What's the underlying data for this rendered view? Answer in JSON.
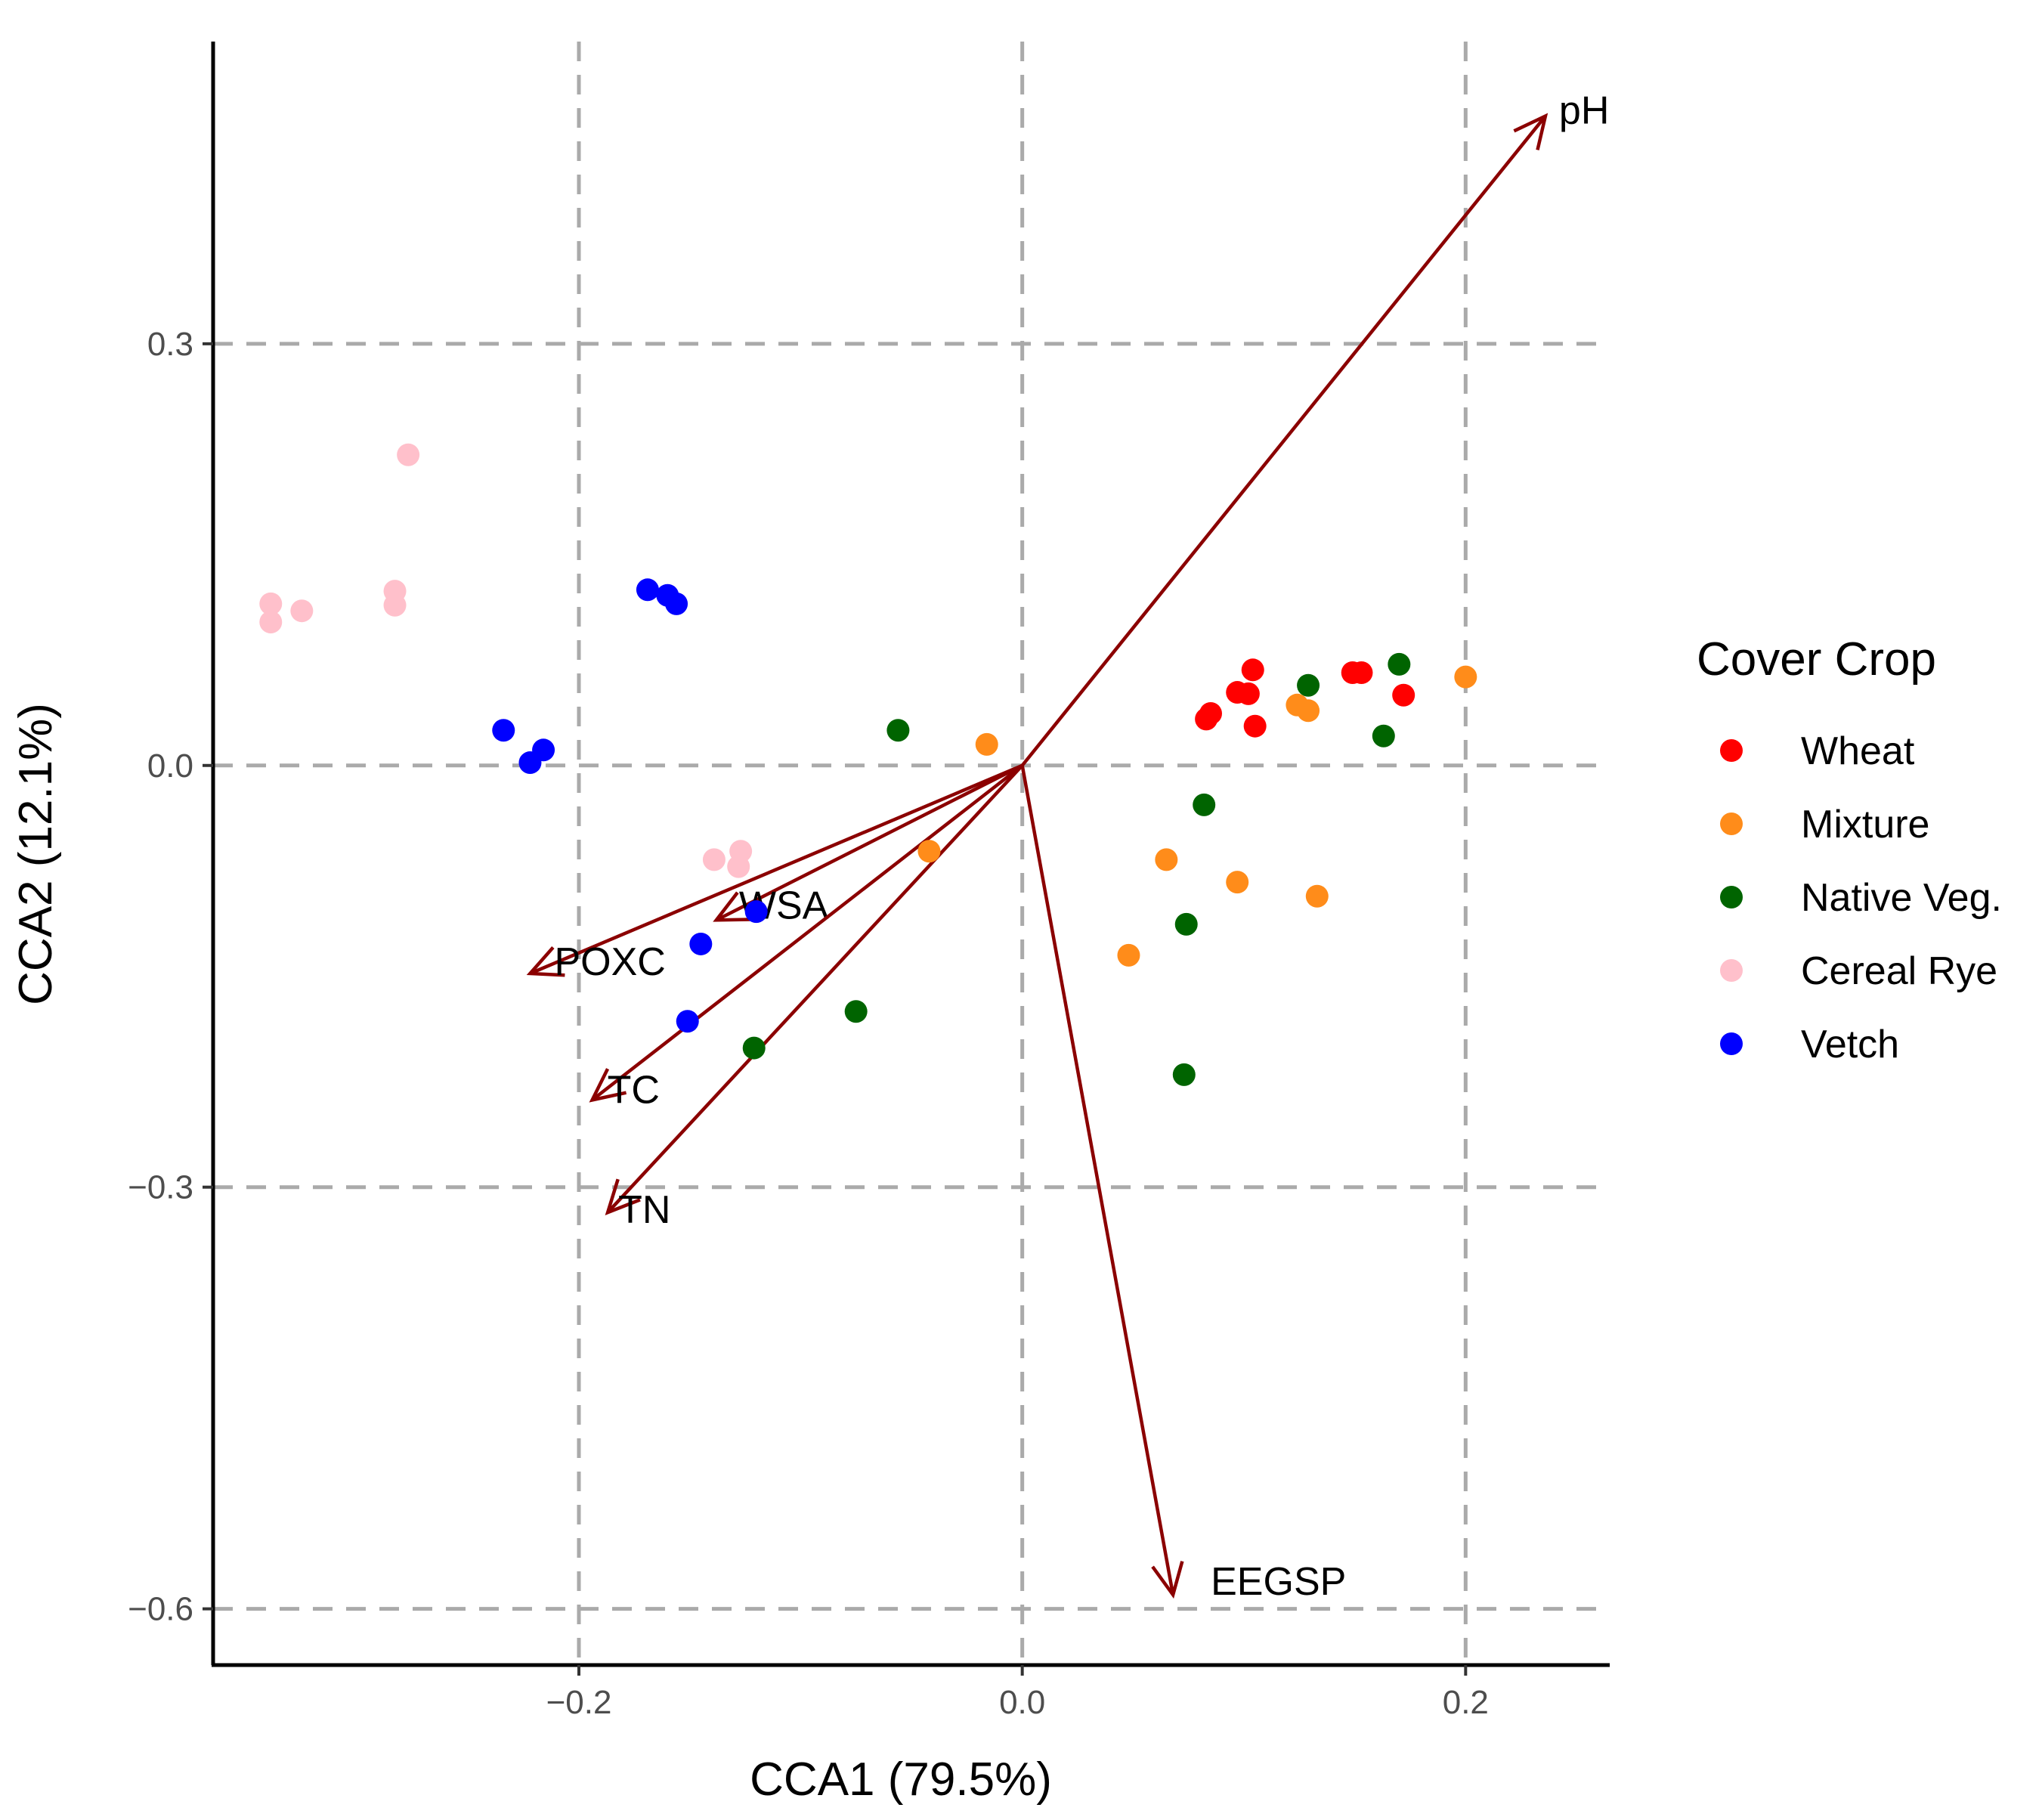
{
  "chart_data": {
    "type": "scatter",
    "title": "",
    "xlabel": "CCA1 (79.5%)",
    "ylabel": "CCA2 (12.1%)",
    "xlim": [
      -0.365,
      0.265
    ],
    "ylim": [
      -0.64,
      0.515
    ],
    "xticks": [
      -0.2,
      0.0,
      0.2
    ],
    "xtick_labels": [
      "−0.2",
      "0.0",
      "0.2"
    ],
    "yticks": [
      0.3,
      0.0,
      -0.3,
      -0.6
    ],
    "ytick_labels": [
      "0.3",
      "0.0",
      "−0.3",
      "−0.6"
    ],
    "grid": true,
    "legend": {
      "title": "Cover Crop",
      "position": "right",
      "entries": [
        {
          "name": "Wheat",
          "color": "#ff0000"
        },
        {
          "name": "Mixture",
          "color": "#ff8c1a"
        },
        {
          "name": "Native Veg.",
          "color": "#006400"
        },
        {
          "name": "Cereal Rye",
          "color": "#ffc0cb"
        },
        {
          "name": "Vetch",
          "color": "#0000ff"
        }
      ]
    },
    "series": [
      {
        "name": "Wheat",
        "color": "#ff0000",
        "points": [
          [
            0.083,
            0.033
          ],
          [
            0.085,
            0.037
          ],
          [
            0.097,
            0.052
          ],
          [
            0.102,
            0.051
          ],
          [
            0.104,
            0.068
          ],
          [
            0.105,
            0.028
          ],
          [
            0.149,
            0.066
          ],
          [
            0.153,
            0.066
          ],
          [
            0.172,
            0.05
          ]
        ]
      },
      {
        "name": "Mixture",
        "color": "#ff8c1a",
        "points": [
          [
            -0.016,
            0.015
          ],
          [
            -0.042,
            -0.061
          ],
          [
            0.048,
            -0.135
          ],
          [
            0.065,
            -0.067
          ],
          [
            0.097,
            -0.083
          ],
          [
            0.124,
            0.043
          ],
          [
            0.129,
            0.039
          ],
          [
            0.133,
            -0.093
          ],
          [
            0.2,
            0.063
          ]
        ]
      },
      {
        "name": "Native Veg.",
        "color": "#006400",
        "points": [
          [
            -0.056,
            0.025
          ],
          [
            -0.075,
            -0.175
          ],
          [
            -0.121,
            -0.201
          ],
          [
            0.082,
            -0.028
          ],
          [
            0.074,
            -0.113
          ],
          [
            0.073,
            -0.22
          ],
          [
            0.129,
            0.057
          ],
          [
            0.163,
            0.021
          ],
          [
            0.17,
            0.072
          ]
        ]
      },
      {
        "name": "Cereal Rye",
        "color": "#ffc0cb",
        "points": [
          [
            -0.339,
            0.115
          ],
          [
            -0.339,
            0.102
          ],
          [
            -0.325,
            0.11
          ],
          [
            -0.283,
            0.124
          ],
          [
            -0.283,
            0.114
          ],
          [
            -0.277,
            0.221
          ],
          [
            -0.139,
            -0.067
          ],
          [
            -0.127,
            -0.061
          ],
          [
            -0.128,
            -0.072
          ]
        ]
      },
      {
        "name": "Vetch",
        "color": "#0000ff",
        "points": [
          [
            -0.234,
            0.025
          ],
          [
            -0.222,
            0.002
          ],
          [
            -0.216,
            0.011
          ],
          [
            -0.169,
            0.125
          ],
          [
            -0.16,
            0.121
          ],
          [
            -0.156,
            0.115
          ],
          [
            -0.145,
            -0.127
          ],
          [
            -0.12,
            -0.104
          ],
          [
            -0.151,
            -0.182
          ]
        ]
      }
    ],
    "vectors": [
      {
        "name": "pH",
        "x": 0.236,
        "y": 0.462
      },
      {
        "name": "WSA",
        "x": -0.138,
        "y": -0.11
      },
      {
        "name": "POXC",
        "x": -0.222,
        "y": -0.148
      },
      {
        "name": "TC",
        "x": -0.194,
        "y": -0.238
      },
      {
        "name": "TN",
        "x": -0.187,
        "y": -0.318
      },
      {
        "name": "EEGSP",
        "x": 0.068,
        "y": -0.59
      }
    ],
    "vector_color": "#8b0000"
  }
}
